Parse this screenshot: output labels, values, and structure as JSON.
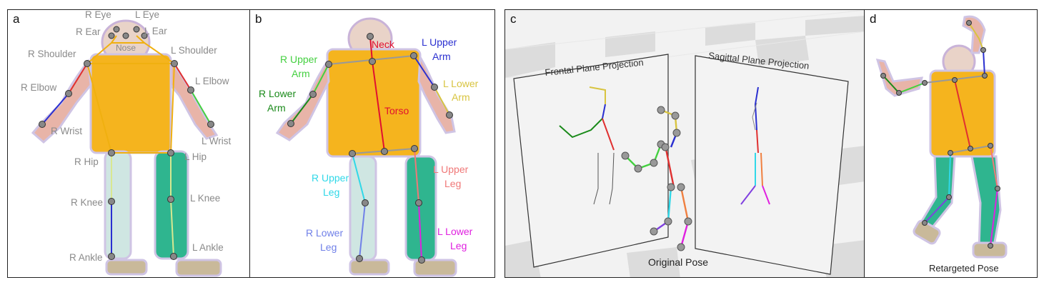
{
  "panels": {
    "a": {
      "tag": "a"
    },
    "b": {
      "tag": "b"
    },
    "c": {
      "tag": "c"
    },
    "d": {
      "tag": "d"
    }
  },
  "panel_a_labels": {
    "r_eye": "R Eye",
    "l_eye": "L Eye",
    "r_ear": "R Ear",
    "l_ear": "L Ear",
    "nose": "Nose",
    "r_shoulder": "R Shoulder",
    "l_shoulder": "L Shoulder",
    "r_elbow": "R Elbow",
    "l_elbow": "L Elbow",
    "r_wrist": "R Wrist",
    "l_wrist": "L Wrist",
    "r_hip": "R Hip",
    "l_hip": "L Hip",
    "r_knee": "R Knee",
    "l_knee": "L Knee",
    "r_ankle": "R Ankle",
    "l_ankle": "L Ankle"
  },
  "panel_b_labels": {
    "neck": "Neck",
    "l_upper_arm": [
      "L Upper",
      "Arm"
    ],
    "r_upper_arm": [
      "R Upper",
      "Arm"
    ],
    "l_lower_arm": [
      "L Lower",
      "Arm"
    ],
    "r_lower_arm": [
      "R Lower",
      "Arm"
    ],
    "torso": "Torso",
    "r_upper_leg": [
      "R Upper",
      "Leg"
    ],
    "l_upper_leg": [
      "L Upper",
      "Leg"
    ],
    "r_lower_leg": [
      "R Lower",
      "Leg"
    ],
    "l_lower_leg": [
      "L Lower",
      "Leg"
    ]
  },
  "panel_c_labels": {
    "frontal": "Frontal Plane Projection",
    "sagittal": "Sagittal Plane Projection",
    "original": "Original Pose"
  },
  "panel_d_labels": {
    "retargeted": "Retargeted Pose"
  },
  "colors": {
    "body_fill": "#f5b41e",
    "limb_red": "#e03030",
    "neck_red": "#e01030",
    "upper_arm_blue": "#2a2fd0",
    "lower_arm_yellow": "#d8c440",
    "r_upper_arm_green": "#44d040",
    "r_lower_arm_green": "#1a8a1a",
    "upper_leg_cyan": "#30d8e8",
    "l_upper_leg_pink": "#f07878",
    "r_lower_leg_blue": "#7080e8",
    "l_lower_leg_magenta": "#e020e0",
    "label_gray": "#8a8a8a",
    "joint_gray": "#777777"
  }
}
